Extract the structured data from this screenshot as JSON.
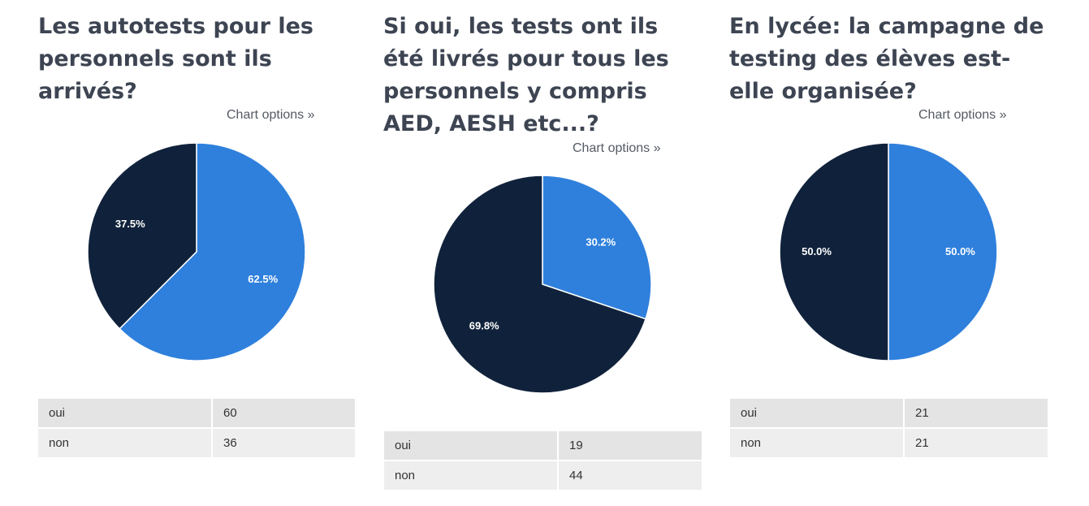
{
  "chart_options_label": "Chart options »",
  "colors": {
    "oui": "#2f80dc",
    "non": "#10223b"
  },
  "chart_data": [
    {
      "type": "pie",
      "title": "Les autotests pour les personnels sont ils arrivés?",
      "categories": [
        "oui",
        "non"
      ],
      "values": [
        60,
        36
      ],
      "labels": [
        "62.5%",
        "37.5%"
      ]
    },
    {
      "type": "pie",
      "title": "Si oui, les tests ont ils été livrés pour tous les personnels y compris AED, AESH etc...?",
      "categories": [
        "oui",
        "non"
      ],
      "values": [
        19,
        44
      ],
      "labels": [
        "30.2%",
        "69.8%"
      ]
    },
    {
      "type": "pie",
      "title": "En lycée: la campagne de testing des élèves est-elle organisée?",
      "categories": [
        "oui",
        "non"
      ],
      "values": [
        21,
        21
      ],
      "labels": [
        "50.0%",
        "50.0%"
      ]
    }
  ],
  "panels": [
    {
      "title_lines": [
        "Les autotests pour les",
        "personnels sont ils",
        "arrivés?"
      ],
      "rows": [
        {
          "label": "oui",
          "value": "60"
        },
        {
          "label": "non",
          "value": "36"
        }
      ]
    },
    {
      "title_lines": [
        "Si oui, les tests ont ils",
        "été livrés pour tous les",
        "personnels y compris",
        "AED, AESH etc...?"
      ],
      "rows": [
        {
          "label": "oui",
          "value": "19"
        },
        {
          "label": "non",
          "value": "44"
        }
      ]
    },
    {
      "title_lines": [
        "En lycée: la campagne de",
        "testing des élèves est-",
        "elle organisée?"
      ],
      "rows": [
        {
          "label": "oui",
          "value": "21"
        },
        {
          "label": "non",
          "value": "21"
        }
      ]
    }
  ]
}
